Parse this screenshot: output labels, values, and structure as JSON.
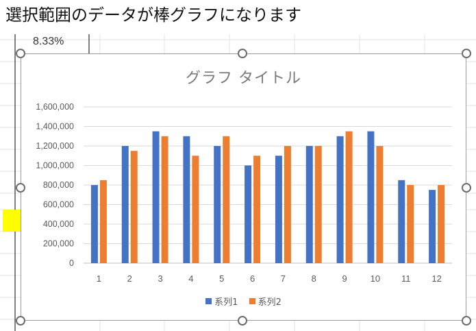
{
  "caption": "選択範囲のデータが棒グラフになります",
  "sheet": {
    "visible_cell_value": "8.33%",
    "highlight_color": "#ffff00"
  },
  "chart_data": {
    "type": "bar",
    "title": "グラフ タイトル",
    "categories": [
      "1",
      "2",
      "3",
      "4",
      "5",
      "6",
      "7",
      "8",
      "9",
      "10",
      "11",
      "12"
    ],
    "series": [
      {
        "name": "系列1",
        "color": "#4472c4",
        "values": [
          800000,
          1200000,
          1350000,
          1300000,
          1200000,
          1000000,
          1100000,
          1200000,
          1300000,
          1350000,
          850000,
          750000
        ]
      },
      {
        "name": "系列2",
        "color": "#ed7d31",
        "values": [
          850000,
          1150000,
          1300000,
          1100000,
          1300000,
          1100000,
          1200000,
          1200000,
          1350000,
          1200000,
          800000,
          800000
        ]
      }
    ],
    "ylim": [
      0,
      1600000
    ],
    "yticks": [
      "0",
      "200,000",
      "400,000",
      "600,000",
      "800,000",
      "1,000,000",
      "1,200,000",
      "1,400,000",
      "1,600,000"
    ],
    "xlabel": "",
    "ylabel": "",
    "grid": true,
    "legend_position": "bottom"
  }
}
